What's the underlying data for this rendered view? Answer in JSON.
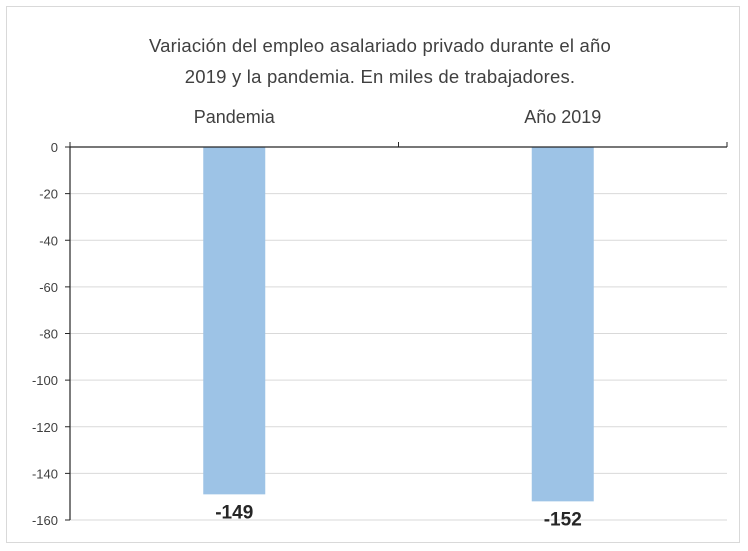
{
  "chart_data": {
    "type": "bar",
    "title_lines": [
      "Variación del empleo asalariado privado durante el año",
      "2019 y la pandemia. En miles de trabajadores."
    ],
    "categories": [
      "Pandemia",
      "Año 2019"
    ],
    "values": [
      -149,
      -152
    ],
    "data_labels": [
      "-149",
      "-152"
    ],
    "yticks": [
      "0",
      "-20",
      "-40",
      "-60",
      "-80",
      "-100",
      "-120",
      "-140",
      "-160"
    ],
    "ylim": [
      -160,
      0
    ],
    "category_axis_position": "top",
    "grid": true,
    "bar_color": "#9dc3e6",
    "grid_color": "#d9d9d9"
  }
}
